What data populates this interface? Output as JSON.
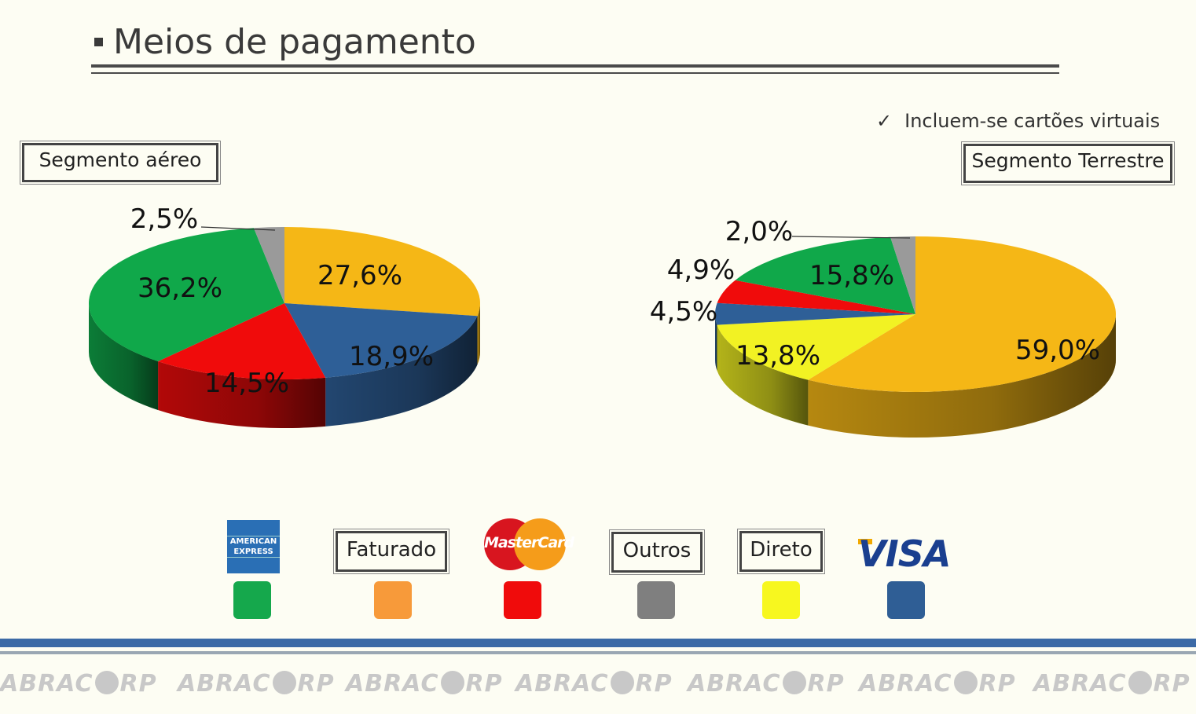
{
  "slide": {
    "title": "Meios de pagamento",
    "note": "Incluem-se cartões virtuais",
    "note_icon": "check-icon"
  },
  "chart_data": [
    {
      "type": "pie",
      "title": "Segmento aéreo",
      "slices": [
        {
          "label": "Faturado",
          "value": 27.6,
          "value_label": "27,6%",
          "color": "#f5b716"
        },
        {
          "label": "Visa",
          "value": 18.9,
          "value_label": "18,9%",
          "color": "#2e5f97"
        },
        {
          "label": "MasterCard",
          "value": 14.5,
          "value_label": "14,5%",
          "color": "#f00b0b"
        },
        {
          "label": "American Express",
          "value": 36.2,
          "value_label": "36,2%",
          "color": "#10a84a"
        },
        {
          "label": "Outros",
          "value": 2.5,
          "value_label": "2,5%",
          "color": "#9a9a9a"
        }
      ]
    },
    {
      "type": "pie",
      "title": "Segmento Terrestre",
      "slices": [
        {
          "label": "Faturado",
          "value": 59.0,
          "value_label": "59,0%",
          "color": "#f5b716"
        },
        {
          "label": "Direto",
          "value": 13.8,
          "value_label": "13,8%",
          "color": "#f2f223"
        },
        {
          "label": "Visa",
          "value": 4.5,
          "value_label": "4,5%",
          "color": "#2e5f97"
        },
        {
          "label": "MasterCard",
          "value": 4.9,
          "value_label": "4,9%",
          "color": "#f00b0b"
        },
        {
          "label": "American Express",
          "value": 15.8,
          "value_label": "15,8%",
          "color": "#10a84a"
        },
        {
          "label": "Outros",
          "value": 2.0,
          "value_label": "2,0%",
          "color": "#9a9a9a"
        }
      ]
    }
  ],
  "legend": {
    "amex_logo_text": "AMERICAN EXPRESS",
    "faturado": "Faturado",
    "mastercard_logo_text": "MasterCard",
    "outros": "Outros",
    "direto": "Direto",
    "visa_logo_text": "VISA",
    "colors": {
      "amex": "#15a84c",
      "faturado": "#f79a3a",
      "mastercard": "#f00b0b",
      "outros": "#7f7f7f",
      "direto": "#f7f71f",
      "visa": "#2f5e95"
    }
  },
  "footer": {
    "watermark": "ABRACORP"
  }
}
